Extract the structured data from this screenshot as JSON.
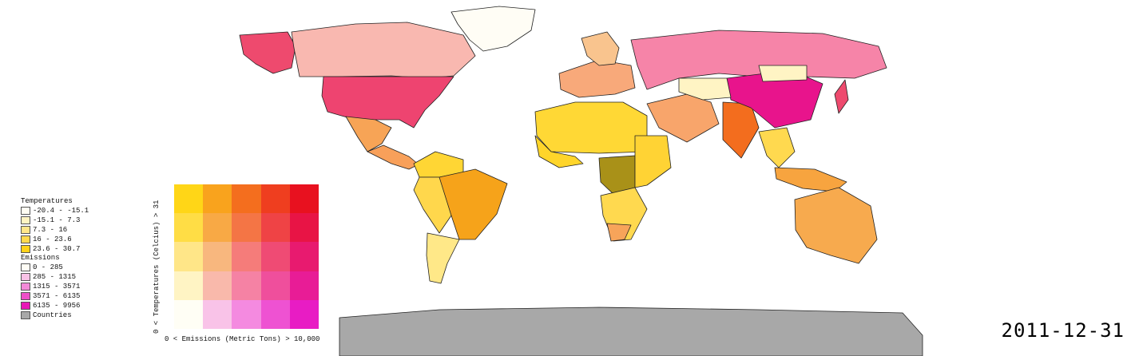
{
  "legend": {
    "temperatures_title": "Temperatures",
    "temperatures": [
      {
        "label": "-20.4 - -15.1",
        "color": "#fffdf2"
      },
      {
        "label": "-15.1 - 7.3",
        "color": "#fff4c2"
      },
      {
        "label": "7.3 - 16",
        "color": "#ffe68a"
      },
      {
        "label": "16 - 23.6",
        "color": "#ffd94f"
      },
      {
        "label": "23.6 - 30.7",
        "color": "#ffd21a"
      }
    ],
    "emissions_title": "Emissions",
    "emissions": [
      {
        "label": "0 - 285",
        "color": "#fffdf5"
      },
      {
        "label": "285 - 1315",
        "color": "#f9c2e6"
      },
      {
        "label": "1315 - 3571",
        "color": "#f38ad8"
      },
      {
        "label": "3571 - 6135",
        "color": "#ee4fc8"
      },
      {
        "label": "6135 - 9956",
        "color": "#e818b6"
      }
    ],
    "countries_label": "Countries",
    "countries_color": "#a8a8a8"
  },
  "bivariate": {
    "y_label": "0 < Temperatures (Celcius) > 31",
    "x_label": "0 < Emissions (Metric Tons) > 10,000",
    "rows": [
      [
        "#ffd617",
        "#f9a31d",
        "#f46e1e",
        "#ef3e1f",
        "#e8111f"
      ],
      [
        "#ffdd45",
        "#f8a945",
        "#f47545",
        "#ef4345",
        "#e81445"
      ],
      [
        "#ffe688",
        "#f8b77e",
        "#f57c7a",
        "#ef4b74",
        "#e81a6f"
      ],
      [
        "#fff4c4",
        "#f9b9ab",
        "#f582a4",
        "#ef4f9c",
        "#e81c96"
      ],
      [
        "#fffef5",
        "#f9c3e8",
        "#f48ae0",
        "#ee52d2",
        "#e81cc4"
      ]
    ]
  },
  "date": "2011-12-31",
  "colors": {
    "border": "#222222",
    "ocean": "#ffffff",
    "no_data": "#a8a8a8"
  }
}
